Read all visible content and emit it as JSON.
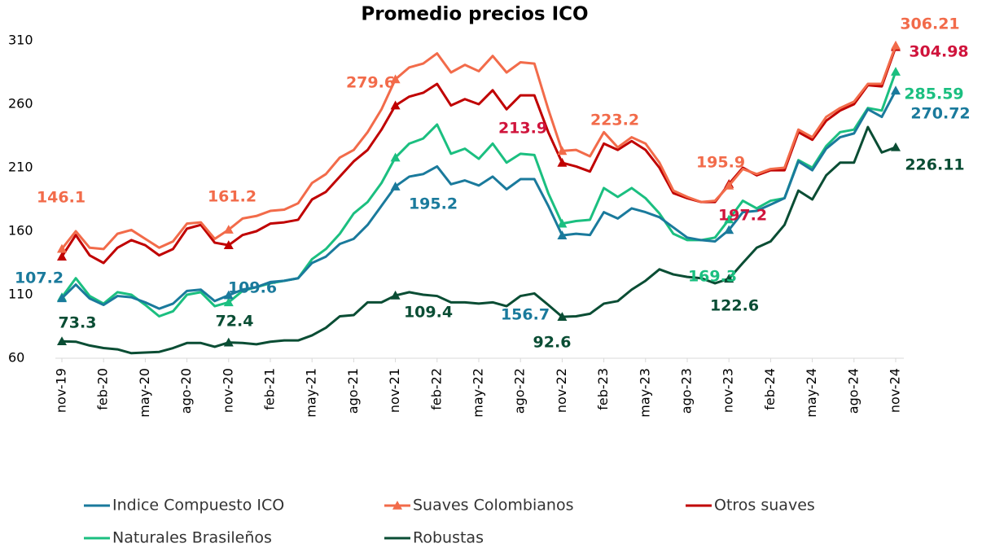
{
  "chart_data": {
    "type": "line",
    "title": "Promedio  precios  ICO",
    "categories": [
      "nov-19",
      null,
      null,
      "feb-20",
      null,
      null,
      "may-20",
      null,
      null,
      "ago-20",
      null,
      null,
      "nov-20",
      null,
      null,
      "feb-21",
      null,
      null,
      "may-21",
      null,
      null,
      "ago-21",
      null,
      null,
      "nov-21",
      null,
      null,
      "feb-22",
      null,
      null,
      "may-22",
      null,
      null,
      "ago-22",
      null,
      null,
      "nov-22",
      null,
      null,
      "feb-23",
      null,
      null,
      "may-23",
      null,
      null,
      "ago-23",
      null,
      null,
      "nov-23",
      null,
      null,
      "feb-24",
      null,
      null,
      "may-24",
      null,
      null,
      "ago-24",
      null,
      null,
      "nov-24"
    ],
    "ylim": [
      60,
      310
    ],
    "yticks": [
      60,
      110,
      160,
      210,
      260,
      310
    ],
    "grid": false,
    "markevery": 12,
    "series": [
      {
        "name": "Indice Compuesto ICO",
        "color": "#1a7a9c",
        "label_color": "#1a7a9c",
        "values": [
          107.2,
          118,
          107,
          102,
          109,
          108,
          104,
          99,
          103,
          113,
          114,
          105,
          109.6,
          114,
          116,
          120,
          121,
          123,
          135,
          140,
          150,
          154,
          165,
          180,
          195.2,
          203,
          205,
          211,
          197,
          200,
          196,
          203,
          193,
          201,
          201,
          180,
          156.7,
          158,
          157,
          175,
          170,
          178,
          175,
          171,
          163,
          155,
          153,
          152,
          161,
          175,
          176,
          181,
          186,
          215,
          208,
          225,
          234,
          237,
          256,
          250,
          270.72
        ],
        "value_labels": [
          "107.2",
          null,
          null,
          null,
          null,
          null,
          null,
          null,
          null,
          null,
          null,
          null,
          "109.6",
          null,
          null,
          null,
          null,
          null,
          null,
          null,
          null,
          null,
          null,
          null,
          "195.2",
          null,
          null,
          null,
          null,
          null,
          null,
          null,
          null,
          null,
          null,
          null,
          "156.7",
          null,
          null,
          null,
          null,
          null,
          null,
          null,
          null,
          null,
          null,
          null,
          null,
          null,
          null,
          null,
          null,
          null,
          null,
          null,
          null,
          null,
          null,
          null,
          "270.72"
        ]
      },
      {
        "name": "Suaves Colombianos",
        "color": "#f26b4a",
        "label_color": "#f26b4a",
        "values": [
          146.1,
          160,
          147,
          146,
          158,
          161,
          154,
          147,
          152,
          166,
          167,
          154,
          161.2,
          170,
          172,
          176,
          177,
          182,
          198,
          205,
          218,
          224,
          238,
          256,
          279.6,
          289,
          292,
          300,
          285,
          291,
          286,
          298,
          285,
          293,
          292,
          256,
          223.2,
          224,
          219,
          238,
          226,
          234,
          229,
          214,
          192,
          187,
          183,
          184,
          195.9,
          209,
          205,
          209,
          210,
          240,
          234,
          250,
          257,
          262,
          276,
          276,
          306.21
        ],
        "value_labels": [
          "146.1",
          null,
          null,
          null,
          null,
          null,
          null,
          null,
          null,
          null,
          null,
          null,
          "161.2",
          null,
          null,
          null,
          null,
          null,
          null,
          null,
          null,
          null,
          null,
          null,
          "279.6",
          null,
          null,
          null,
          null,
          null,
          null,
          null,
          null,
          null,
          null,
          null,
          "223.2",
          null,
          null,
          null,
          null,
          null,
          null,
          null,
          null,
          null,
          null,
          null,
          "195.9",
          null,
          null,
          null,
          null,
          null,
          null,
          null,
          null,
          null,
          null,
          null,
          "306.21"
        ]
      },
      {
        "name": "Otros suaves",
        "color": "#c00000",
        "label_color": "#d0143c",
        "values": [
          140,
          157,
          141,
          135,
          147,
          153,
          149,
          141,
          146,
          162,
          165,
          151,
          149,
          157,
          160,
          166,
          167,
          169,
          185,
          191,
          203,
          215,
          224,
          240,
          259,
          266,
          269,
          276,
          259,
          264,
          260,
          271,
          256,
          267,
          267,
          238,
          213.9,
          211,
          207,
          229,
          224,
          231,
          224,
          210,
          190,
          186,
          183,
          183,
          197.2,
          210,
          204,
          208,
          208,
          238,
          232,
          247,
          255,
          260,
          275,
          274,
          304.98
        ],
        "value_labels": [
          null,
          null,
          null,
          null,
          null,
          null,
          null,
          null,
          null,
          null,
          null,
          null,
          null,
          null,
          null,
          null,
          null,
          null,
          null,
          null,
          null,
          null,
          null,
          null,
          null,
          null,
          null,
          null,
          null,
          null,
          null,
          null,
          null,
          null,
          null,
          null,
          "213.9",
          null,
          null,
          null,
          null,
          null,
          null,
          null,
          null,
          null,
          null,
          null,
          "197.2",
          null,
          null,
          null,
          null,
          null,
          null,
          null,
          null,
          null,
          null,
          null,
          "304.98"
        ]
      },
      {
        "name": "Naturales Brasileños",
        "color": "#1bbf80",
        "label_color": "#1bbf80",
        "values": [
          108,
          123,
          109,
          103,
          112,
          110,
          102,
          93,
          97,
          110,
          112,
          101,
          104,
          113,
          116,
          119,
          121,
          123,
          138,
          146,
          158,
          174,
          183,
          198,
          218,
          229,
          233,
          244,
          221,
          225,
          217,
          229,
          214,
          221,
          220,
          190,
          166,
          168,
          169,
          194,
          187,
          194,
          186,
          174,
          158,
          153,
          153,
          155,
          169.3,
          184,
          178,
          184,
          186,
          216,
          210,
          227,
          238,
          240,
          257,
          255,
          285.59
        ],
        "value_labels": [
          null,
          null,
          null,
          null,
          null,
          null,
          null,
          null,
          null,
          null,
          null,
          null,
          null,
          null,
          null,
          null,
          null,
          null,
          null,
          null,
          null,
          null,
          null,
          null,
          null,
          null,
          null,
          null,
          null,
          null,
          null,
          null,
          null,
          null,
          null,
          null,
          null,
          null,
          null,
          null,
          null,
          null,
          null,
          null,
          null,
          null,
          null,
          null,
          "169.3",
          null,
          null,
          null,
          null,
          null,
          null,
          null,
          null,
          null,
          null,
          null,
          "285.59"
        ]
      },
      {
        "name": "Robustas",
        "color": "#0a4d34",
        "label_color": "#0a4d34",
        "values": [
          73.3,
          73,
          70,
          68,
          67,
          64,
          64.5,
          65,
          68,
          72,
          72,
          69,
          72.4,
          72,
          71,
          73,
          74,
          74,
          78,
          84,
          93,
          94,
          104,
          104,
          109.4,
          112,
          110,
          109,
          104,
          104,
          103,
          104,
          101,
          109,
          111,
          102,
          92.6,
          93,
          95,
          103,
          105,
          114,
          121,
          130,
          126,
          124,
          123,
          119,
          122.6,
          135,
          147,
          152,
          165,
          192,
          185,
          204,
          214,
          214,
          242,
          222,
          226.11
        ],
        "value_labels": [
          "73.3",
          null,
          null,
          null,
          null,
          null,
          null,
          null,
          null,
          null,
          null,
          null,
          "72.4",
          null,
          null,
          null,
          null,
          null,
          null,
          null,
          null,
          null,
          null,
          null,
          "109.4",
          null,
          null,
          null,
          null,
          null,
          null,
          null,
          null,
          null,
          null,
          null,
          "92.6",
          null,
          null,
          null,
          null,
          null,
          null,
          null,
          null,
          null,
          null,
          null,
          "122.6",
          null,
          null,
          null,
          null,
          null,
          null,
          null,
          null,
          null,
          null,
          null,
          "226.11"
        ]
      }
    ]
  }
}
